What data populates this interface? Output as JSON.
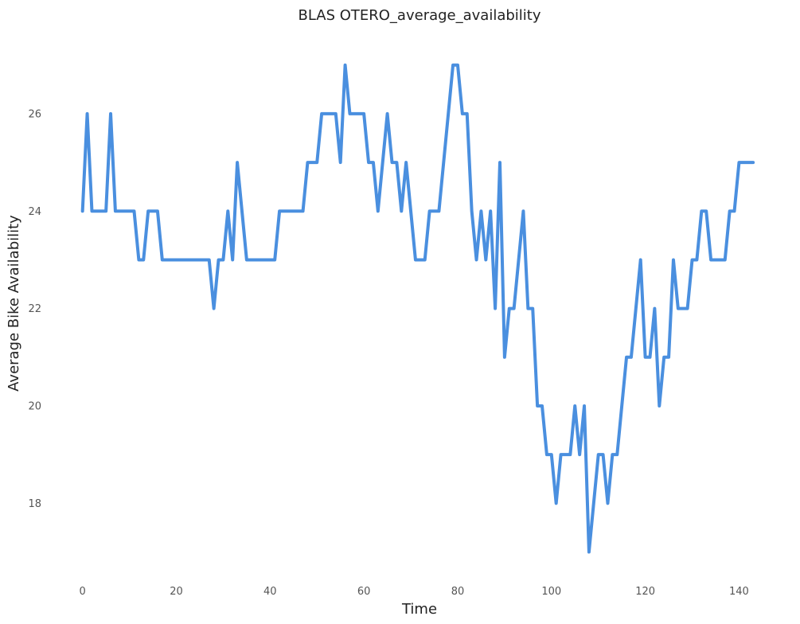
{
  "chart_data": {
    "type": "line",
    "title": "BLAS OTERO_average_availability",
    "xlabel": "Time",
    "ylabel": "Average Bike Availability",
    "xlim": [
      -3,
      144
    ],
    "ylim": [
      16.6,
      27.6
    ],
    "xticks": [
      0,
      20,
      40,
      60,
      80,
      100,
      120,
      140
    ],
    "yticks": [
      18,
      20,
      22,
      24,
      26
    ],
    "grid": false,
    "series": [
      {
        "color": "#4a8fdf",
        "x": [
          0,
          1,
          2,
          3,
          4,
          5,
          6,
          7,
          8,
          9,
          10,
          11,
          12,
          13,
          14,
          15,
          16,
          17,
          18,
          19,
          20,
          21,
          22,
          23,
          24,
          25,
          26,
          27,
          28,
          29,
          30,
          31,
          32,
          33,
          34,
          35,
          36,
          37,
          38,
          39,
          40,
          41,
          42,
          43,
          44,
          45,
          46,
          47,
          48,
          49,
          50,
          51,
          52,
          53,
          54,
          55,
          56,
          57,
          58,
          59,
          60,
          61,
          62,
          63,
          64,
          65,
          66,
          67,
          68,
          69,
          70,
          71,
          72,
          73,
          74,
          75,
          76,
          77,
          78,
          79,
          80,
          81,
          82,
          83,
          84,
          85,
          86,
          87,
          88,
          89,
          90,
          91,
          92,
          93,
          94,
          95,
          96,
          97,
          98,
          99,
          100,
          101,
          102,
          103,
          104,
          105,
          106,
          107,
          108,
          109,
          110,
          111,
          112,
          113,
          114,
          115,
          116,
          117,
          118,
          119,
          120,
          121,
          122,
          123,
          124,
          125,
          126,
          127,
          128,
          129,
          130,
          131,
          132,
          133,
          134,
          135,
          136,
          137,
          138,
          139,
          140,
          141,
          142,
          143
        ],
        "values": [
          24,
          26,
          24,
          24,
          24,
          24,
          26,
          24,
          24,
          24,
          24,
          24,
          23,
          23,
          24,
          24,
          24,
          23,
          23,
          23,
          23,
          23,
          23,
          23,
          23,
          23,
          23,
          23,
          22,
          23,
          23,
          24,
          23,
          25,
          24,
          23,
          23,
          23,
          23,
          23,
          23,
          23,
          24,
          24,
          24,
          24,
          24,
          24,
          25,
          25,
          25,
          26,
          26,
          26,
          26,
          25,
          27,
          26,
          26,
          26,
          26,
          25,
          25,
          24,
          25,
          26,
          25,
          25,
          24,
          25,
          24,
          23,
          23,
          23,
          24,
          24,
          24,
          25,
          26,
          27,
          27,
          26,
          26,
          24,
          23,
          24,
          23,
          24,
          22,
          25,
          21,
          22,
          22,
          23,
          24,
          22,
          22,
          20,
          20,
          19,
          19,
          18,
          19,
          19,
          19,
          20,
          19,
          20,
          17,
          18,
          19,
          19,
          18,
          19,
          19,
          20,
          21,
          21,
          22,
          23,
          21,
          21,
          22,
          20,
          21,
          21,
          23,
          22,
          22,
          22,
          23,
          23,
          24,
          24,
          23,
          23,
          23,
          23,
          24,
          24,
          25,
          25,
          25,
          25
        ]
      }
    ]
  }
}
